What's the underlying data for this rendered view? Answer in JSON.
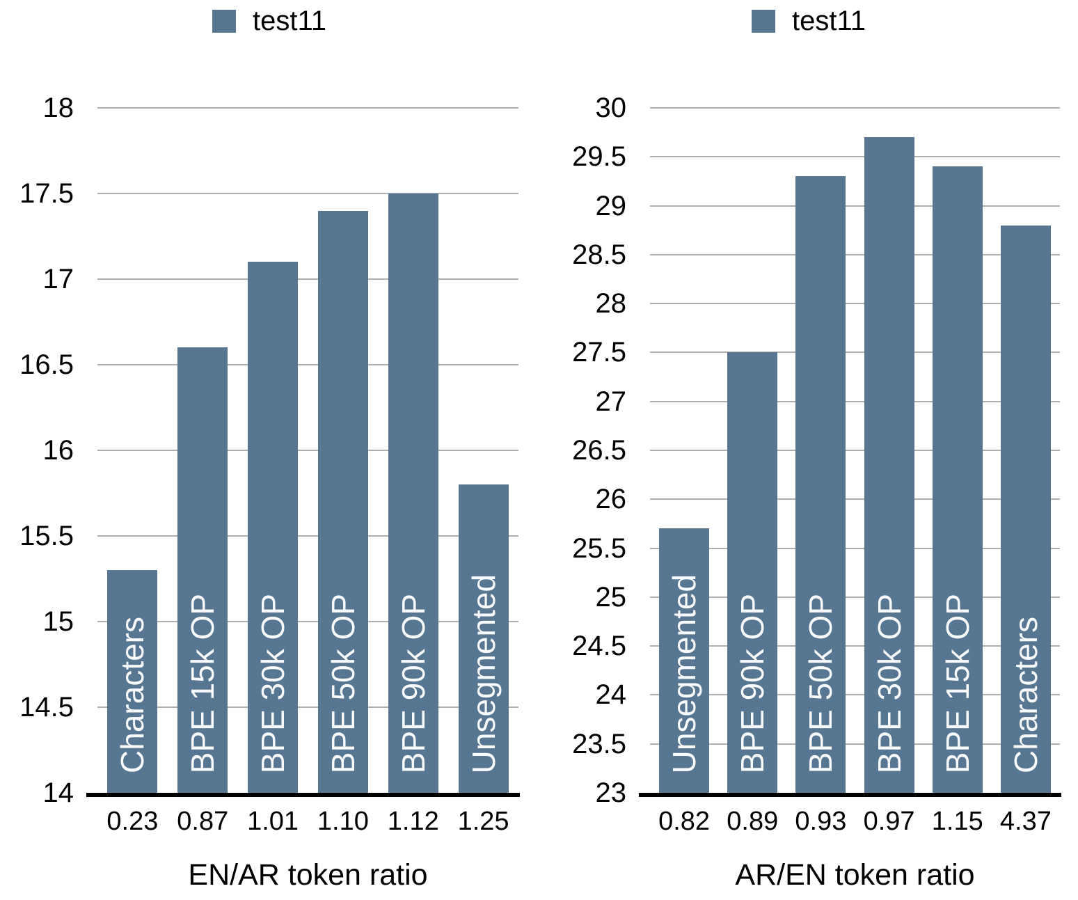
{
  "colors": {
    "bar": "#577691",
    "gridline": "#aeaeae",
    "axis_line": "#000000",
    "tick_text": "#000000",
    "bar_label_text": "#ffffff",
    "background": "#ffffff"
  },
  "chart_data": [
    {
      "type": "bar",
      "title": "",
      "legend": [
        "test11"
      ],
      "legend_position": "top-center",
      "categories": [
        "0.23",
        "0.87",
        "1.01",
        "1.10",
        "1.12",
        "1.25"
      ],
      "bar_labels": [
        "Characters",
        "BPE 15k OP",
        "BPE 30k OP",
        "BPE 50k OP",
        "BPE 90k OP",
        "Unsegmented"
      ],
      "values": [
        15.3,
        16.6,
        17.1,
        17.4,
        17.5,
        15.8
      ],
      "xlabel": "EN/AR token ratio",
      "ylabel": "",
      "ylim": [
        14,
        18
      ],
      "ytick_step": 0.5,
      "yticks": [
        "14",
        "14.5",
        "15",
        "15.5",
        "16",
        "16.5",
        "17",
        "17.5",
        "18"
      ],
      "grid": true,
      "bar_color": "#577691"
    },
    {
      "type": "bar",
      "title": "",
      "legend": [
        "test11"
      ],
      "legend_position": "top-center",
      "categories": [
        "0.82",
        "0.89",
        "0.93",
        "0.97",
        "1.15",
        "4.37"
      ],
      "bar_labels": [
        "Unsegmented",
        "BPE 90k OP",
        "BPE 50k OP",
        "BPE 30k OP",
        "BPE 15k OP",
        "Characters"
      ],
      "values": [
        25.7,
        27.5,
        29.3,
        29.7,
        29.4,
        28.8
      ],
      "xlabel": "AR/EN token ratio",
      "ylabel": "",
      "ylim": [
        23,
        30
      ],
      "ytick_step": 0.5,
      "yticks": [
        "23",
        "23.5",
        "24",
        "24.5",
        "25",
        "25.5",
        "26",
        "26.5",
        "27",
        "27.5",
        "28",
        "28.5",
        "29",
        "29.5",
        "30"
      ],
      "grid": true,
      "bar_color": "#577691"
    }
  ]
}
